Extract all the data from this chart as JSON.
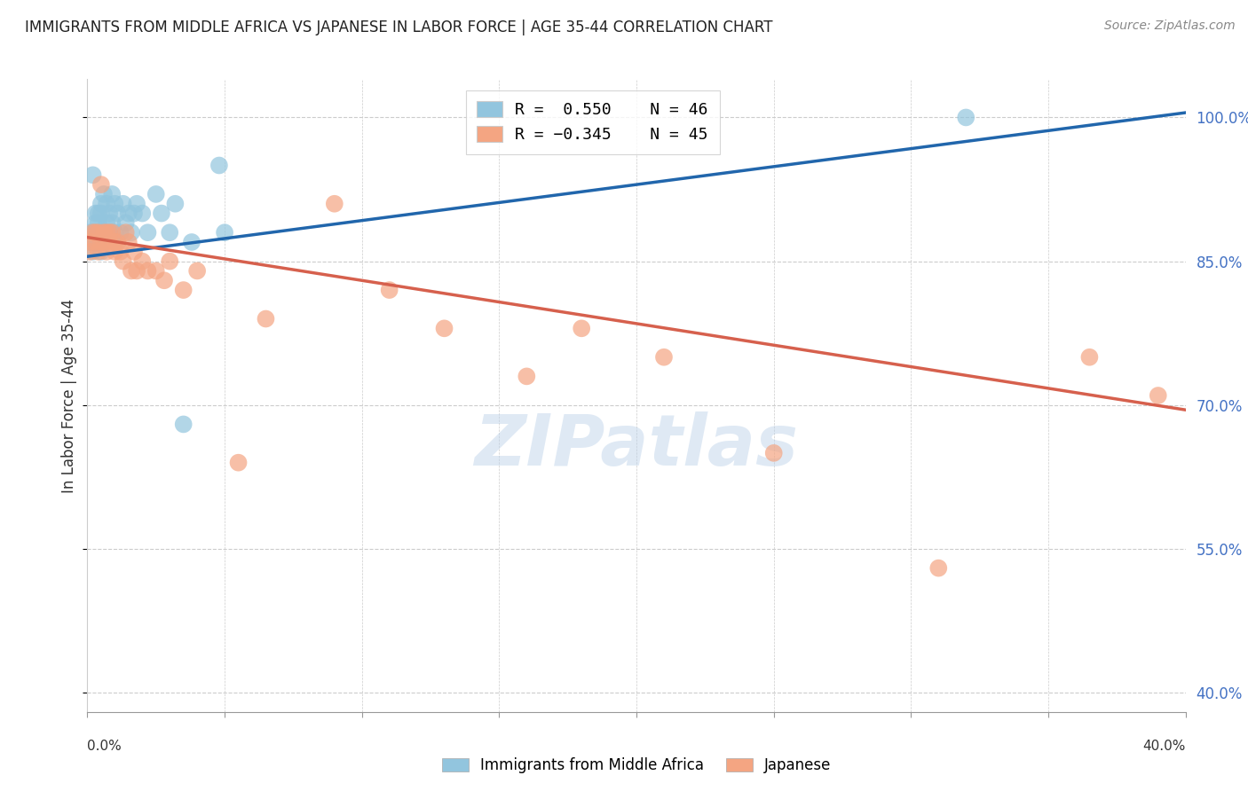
{
  "title": "IMMIGRANTS FROM MIDDLE AFRICA VS JAPANESE IN LABOR FORCE | AGE 35-44 CORRELATION CHART",
  "source": "Source: ZipAtlas.com",
  "ylabel": "In Labor Force | Age 35-44",
  "ytick_labels": [
    "100.0%",
    "85.0%",
    "70.0%",
    "55.0%",
    "40.0%"
  ],
  "ytick_values": [
    1.0,
    0.85,
    0.7,
    0.55,
    0.4
  ],
  "xtick_positions": [
    0.0,
    0.05,
    0.1,
    0.15,
    0.2,
    0.25,
    0.3,
    0.35,
    0.4
  ],
  "xlim": [
    0.0,
    0.4
  ],
  "ylim": [
    0.38,
    1.04
  ],
  "legend_blue_r": "R =  0.550",
  "legend_blue_n": "N = 46",
  "legend_pink_r": "R = -0.345",
  "legend_pink_n": "N = 45",
  "blue_label": "Immigrants from Middle Africa",
  "pink_label": "Japanese",
  "blue_color": "#92c5de",
  "pink_color": "#f4a582",
  "blue_line_color": "#2166ac",
  "pink_line_color": "#d6604d",
  "watermark": "ZIPatlas",
  "blue_line_x0": 0.0,
  "blue_line_y0": 0.855,
  "blue_line_x1": 0.4,
  "blue_line_y1": 1.005,
  "pink_line_x0": 0.0,
  "pink_line_y0": 0.875,
  "pink_line_x1": 0.4,
  "pink_line_y1": 0.695,
  "blue_scatter_x": [
    0.001,
    0.001,
    0.002,
    0.002,
    0.002,
    0.003,
    0.003,
    0.003,
    0.003,
    0.004,
    0.004,
    0.004,
    0.004,
    0.005,
    0.005,
    0.005,
    0.005,
    0.006,
    0.006,
    0.007,
    0.007,
    0.008,
    0.008,
    0.009,
    0.009,
    0.01,
    0.01,
    0.011,
    0.012,
    0.013,
    0.014,
    0.015,
    0.016,
    0.017,
    0.018,
    0.02,
    0.022,
    0.025,
    0.027,
    0.03,
    0.032,
    0.035,
    0.038,
    0.32,
    0.05,
    0.048
  ],
  "blue_scatter_y": [
    0.88,
    0.87,
    0.94,
    0.88,
    0.86,
    0.9,
    0.89,
    0.88,
    0.87,
    0.9,
    0.89,
    0.88,
    0.87,
    0.91,
    0.9,
    0.88,
    0.86,
    0.92,
    0.88,
    0.91,
    0.89,
    0.9,
    0.88,
    0.92,
    0.89,
    0.91,
    0.88,
    0.9,
    0.88,
    0.91,
    0.89,
    0.9,
    0.88,
    0.9,
    0.91,
    0.9,
    0.88,
    0.92,
    0.9,
    0.88,
    0.91,
    0.68,
    0.87,
    1.0,
    0.88,
    0.95
  ],
  "pink_scatter_x": [
    0.001,
    0.001,
    0.002,
    0.003,
    0.003,
    0.004,
    0.004,
    0.005,
    0.005,
    0.006,
    0.006,
    0.007,
    0.007,
    0.008,
    0.008,
    0.009,
    0.01,
    0.01,
    0.011,
    0.012,
    0.013,
    0.014,
    0.015,
    0.016,
    0.017,
    0.018,
    0.02,
    0.022,
    0.025,
    0.028,
    0.03,
    0.035,
    0.04,
    0.055,
    0.065,
    0.09,
    0.11,
    0.13,
    0.16,
    0.18,
    0.21,
    0.25,
    0.31,
    0.365,
    0.39
  ],
  "pink_scatter_y": [
    0.87,
    0.86,
    0.88,
    0.88,
    0.87,
    0.88,
    0.86,
    0.93,
    0.87,
    0.88,
    0.87,
    0.88,
    0.86,
    0.88,
    0.87,
    0.88,
    0.87,
    0.86,
    0.87,
    0.86,
    0.85,
    0.88,
    0.87,
    0.84,
    0.86,
    0.84,
    0.85,
    0.84,
    0.84,
    0.83,
    0.85,
    0.82,
    0.84,
    0.64,
    0.79,
    0.91,
    0.82,
    0.78,
    0.73,
    0.78,
    0.75,
    0.65,
    0.53,
    0.75,
    0.71
  ],
  "grid_color": "#cccccc",
  "bg_color": "#ffffff",
  "title_color": "#222222",
  "source_color": "#888888",
  "ylabel_color": "#333333",
  "ytick_color": "#4472c4",
  "xtick_color": "#333333"
}
